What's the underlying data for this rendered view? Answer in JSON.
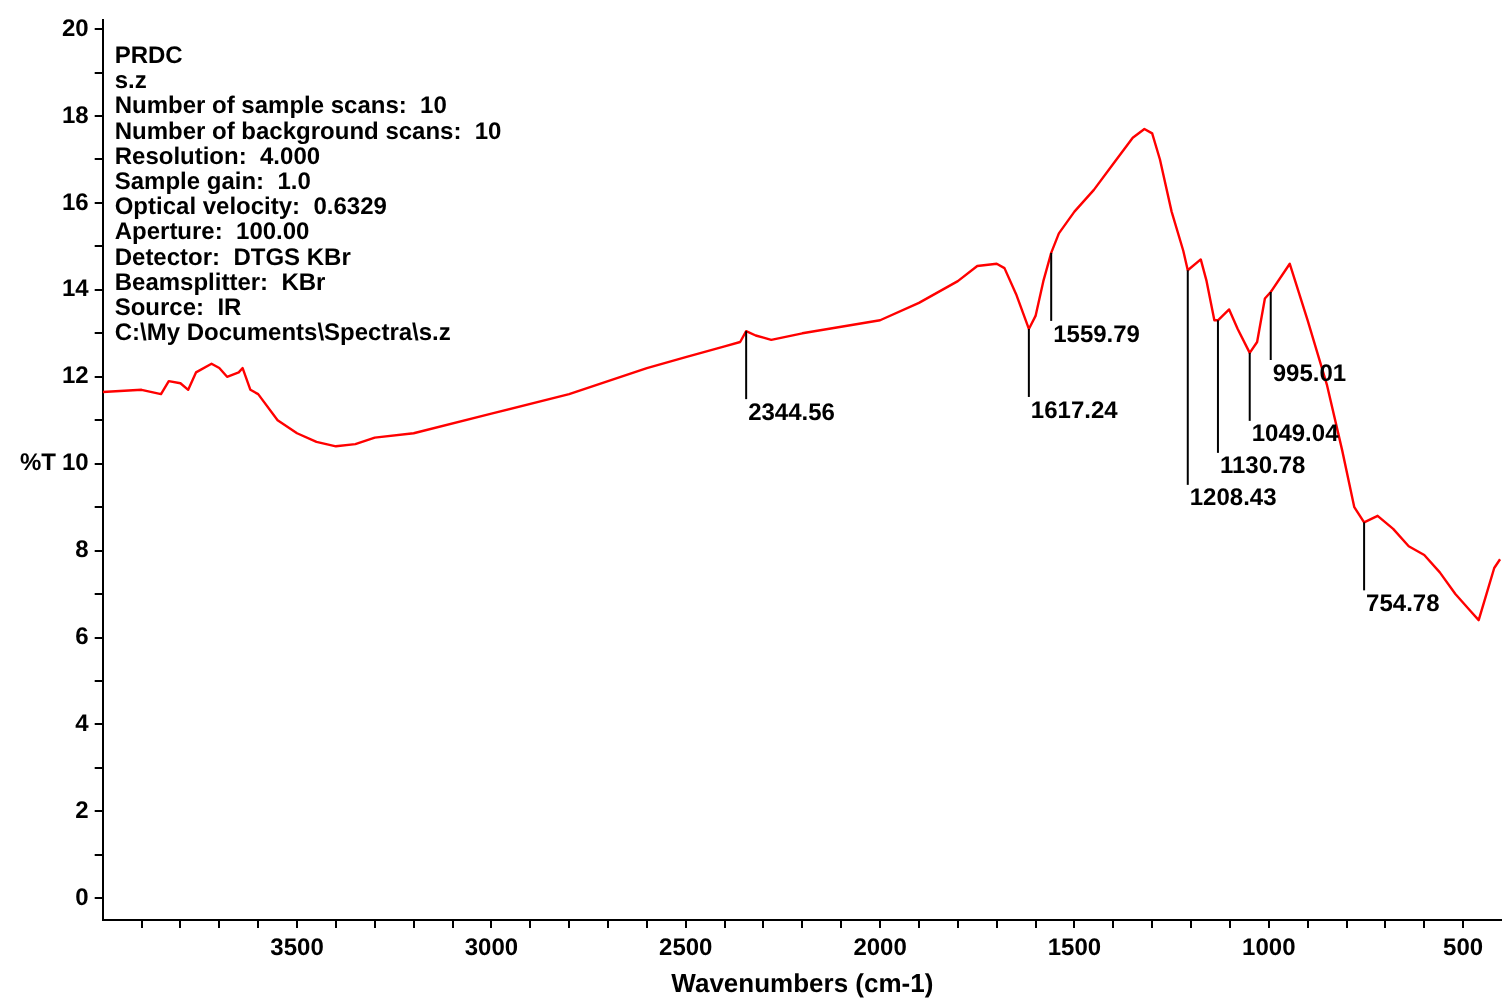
{
  "chart_data": {
    "type": "line",
    "xlabel": "Wavenumbers (cm-1)",
    "ylabel": "%T",
    "xlim": [
      4000,
      400
    ],
    "ylim": [
      -0.5,
      20.2
    ],
    "xticks": [
      {
        "value": 3900,
        "label": null
      },
      {
        "value": 3800,
        "label": null
      },
      {
        "value": 3700,
        "label": null
      },
      {
        "value": 3600,
        "label": null
      },
      3500,
      {
        "value": 3400,
        "label": null
      },
      {
        "value": 3300,
        "label": null
      },
      {
        "value": 3200,
        "label": null
      },
      {
        "value": 3100,
        "label": null
      },
      3000,
      {
        "value": 2900,
        "label": null
      },
      {
        "value": 2800,
        "label": null
      },
      {
        "value": 2700,
        "label": null
      },
      {
        "value": 2600,
        "label": null
      },
      2500,
      {
        "value": 2400,
        "label": null
      },
      {
        "value": 2300,
        "label": null
      },
      {
        "value": 2200,
        "label": null
      },
      {
        "value": 2100,
        "label": null
      },
      2000,
      {
        "value": 1900,
        "label": null
      },
      {
        "value": 1800,
        "label": null
      },
      {
        "value": 1700,
        "label": null
      },
      {
        "value": 1600,
        "label": null
      },
      1500,
      {
        "value": 1400,
        "label": null
      },
      {
        "value": 1300,
        "label": null
      },
      {
        "value": 1200,
        "label": null
      },
      {
        "value": 1100,
        "label": null
      },
      1000,
      {
        "value": 900,
        "label": null
      },
      {
        "value": 800,
        "label": null
      },
      {
        "value": 700,
        "label": null
      },
      {
        "value": 600,
        "label": null
      },
      500
    ],
    "yticks": [
      0,
      {
        "value": 1,
        "label": null
      },
      2,
      {
        "value": 3,
        "label": null
      },
      4,
      {
        "value": 5,
        "label": null
      },
      6,
      {
        "value": 7,
        "label": null
      },
      8,
      {
        "value": 9,
        "label": null
      },
      10,
      {
        "value": 11,
        "label": null
      },
      12,
      {
        "value": 13,
        "label": null
      },
      14,
      {
        "value": 15,
        "label": null
      },
      16,
      {
        "value": 17,
        "label": null
      },
      18,
      {
        "value": 19,
        "label": null
      },
      20
    ],
    "grid": false,
    "legend": false,
    "marker": "none",
    "line_style": "solid",
    "series": [
      {
        "color": "#ff0000",
        "x": [
          4000,
          3900,
          3850,
          3830,
          3800,
          3780,
          3760,
          3720,
          3700,
          3680,
          3650,
          3640,
          3620,
          3600,
          3550,
          3500,
          3450,
          3400,
          3350,
          3300,
          3200,
          3000,
          2800,
          2600,
          2500,
          2400,
          2360,
          2344.56,
          2320,
          2300,
          2280,
          2200,
          2000,
          1900,
          1800,
          1750,
          1700,
          1680,
          1650,
          1617.24,
          1600,
          1580,
          1559.79,
          1540,
          1500,
          1450,
          1400,
          1350,
          1320,
          1300,
          1280,
          1250,
          1220,
          1208.43,
          1175,
          1160,
          1140,
          1130.78,
          1102,
          1080,
          1049.04,
          1030,
          1010,
          995.01,
          946,
          900,
          850,
          811,
          780,
          754.78,
          720,
          680,
          640,
          600,
          560,
          520,
          480,
          460,
          440,
          420,
          405
        ],
        "values": [
          11.65,
          11.7,
          11.6,
          11.9,
          11.85,
          11.7,
          12.1,
          12.3,
          12.2,
          12.0,
          12.1,
          12.2,
          11.7,
          11.6,
          11.0,
          10.7,
          10.5,
          10.4,
          10.45,
          10.6,
          10.7,
          11.15,
          11.6,
          12.2,
          12.45,
          12.7,
          12.8,
          13.05,
          12.95,
          12.9,
          12.85,
          13.0,
          13.3,
          13.7,
          14.2,
          14.55,
          14.6,
          14.5,
          13.9,
          13.1,
          13.4,
          14.2,
          14.85,
          15.3,
          15.8,
          16.3,
          16.9,
          17.5,
          17.7,
          17.6,
          17.0,
          15.8,
          14.9,
          14.45,
          14.7,
          14.2,
          13.3,
          13.3,
          13.55,
          13.1,
          12.55,
          12.8,
          13.8,
          13.95,
          14.6,
          13.3,
          11.8,
          10.3,
          9.0,
          8.65,
          8.8,
          8.5,
          8.1,
          7.9,
          7.5,
          7.0,
          6.6,
          6.4,
          7.0,
          7.6,
          7.8
        ]
      }
    ],
    "annotations": [
      "PRDC",
      "s.z",
      "Number of sample scans:  10",
      "Number of background scans:  10",
      "Resolution:  4.000",
      "Sample gain:  1.0",
      "Optical velocity:  0.6329",
      "Aperture:  100.00",
      "Detector:  DTGS KBr",
      "Beamsplitter:  KBr",
      "Source:  IR",
      "C:\\My Documents\\Spectra\\s.z",
      {
        "text": "2344.56",
        "x": 2344.56,
        "y": 13.05
      },
      {
        "text": "1617.24",
        "x": 1617.24,
        "y": 13.1
      },
      {
        "text": "1559.79",
        "x": 1559.79,
        "y": 14.85
      },
      {
        "text": "1208.43",
        "x": 1208.43,
        "y": 14.45
      },
      {
        "text": "1130.78",
        "x": 1130.78,
        "y": 13.3
      },
      {
        "text": "1049.04",
        "x": 1049.04,
        "y": 12.55
      },
      {
        "text": "995.01",
        "x": 995.01,
        "y": 13.95
      },
      {
        "text": "754.78",
        "x": 754.78,
        "y": 8.65
      }
    ]
  }
}
